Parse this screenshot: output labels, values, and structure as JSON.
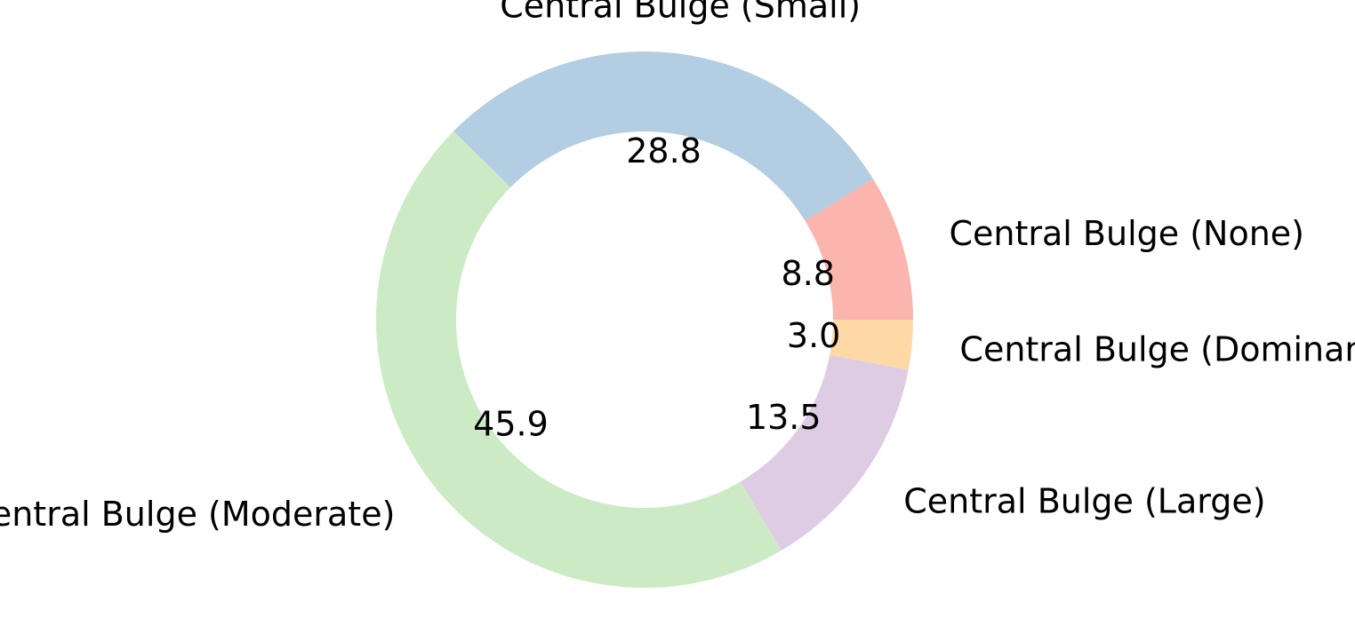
{
  "chart_data": {
    "type": "pie",
    "style": "donut",
    "start_angle_deg": 0,
    "direction": "counterclockwise",
    "slices": [
      {
        "label": "Central Bulge (None)",
        "value": 8.8,
        "value_label": "8.8",
        "color": "#fbb4ae"
      },
      {
        "label": "Central Bulge (Small)",
        "value": 28.8,
        "value_label": "28.8",
        "color": "#b3cde3"
      },
      {
        "label": "Central Bulge (Moderate)",
        "value": 45.9,
        "value_label": "45.9",
        "color": "#ccebc5"
      },
      {
        "label": "Central Bulge (Large)",
        "value": 13.5,
        "value_label": "13.5",
        "color": "#decbe4"
      },
      {
        "label": "Central Bulge (Dominant)",
        "value": 3.0,
        "value_label": "3.0",
        "color": "#fed9a6"
      }
    ]
  }
}
